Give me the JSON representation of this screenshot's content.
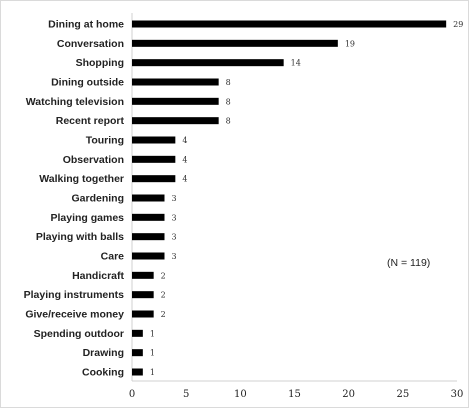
{
  "chart_data": {
    "type": "bar",
    "orientation": "horizontal",
    "categories": [
      "Dining at home",
      "Conversation",
      "Shopping",
      "Dining outside",
      "Watching television",
      "Recent report",
      "Touring",
      "Observation",
      "Walking together",
      "Gardening",
      "Playing games",
      "Playing with balls",
      "Care",
      "Handicraft",
      "Playing instruments",
      "Give/receive money",
      "Spending outdoor",
      "Drawing",
      "Cooking"
    ],
    "values": [
      29,
      19,
      14,
      8,
      8,
      8,
      4,
      4,
      4,
      3,
      3,
      3,
      3,
      2,
      2,
      2,
      1,
      1,
      1
    ],
    "value_labels": [
      "29",
      "19",
      "14",
      "8",
      "8",
      "8",
      "4",
      "4",
      "4",
      "3",
      "3",
      "3",
      "3",
      "2",
      "2",
      "2",
      "1",
      "1",
      "1"
    ],
    "x_ticks": [
      "0",
      "5",
      "10",
      "15",
      "20",
      "25",
      "30"
    ],
    "xlim": [
      0,
      30
    ],
    "grid": false,
    "bar_color": "#000000",
    "title": "",
    "xlabel": "",
    "ylabel": "",
    "annotation": "(N = 119)"
  }
}
